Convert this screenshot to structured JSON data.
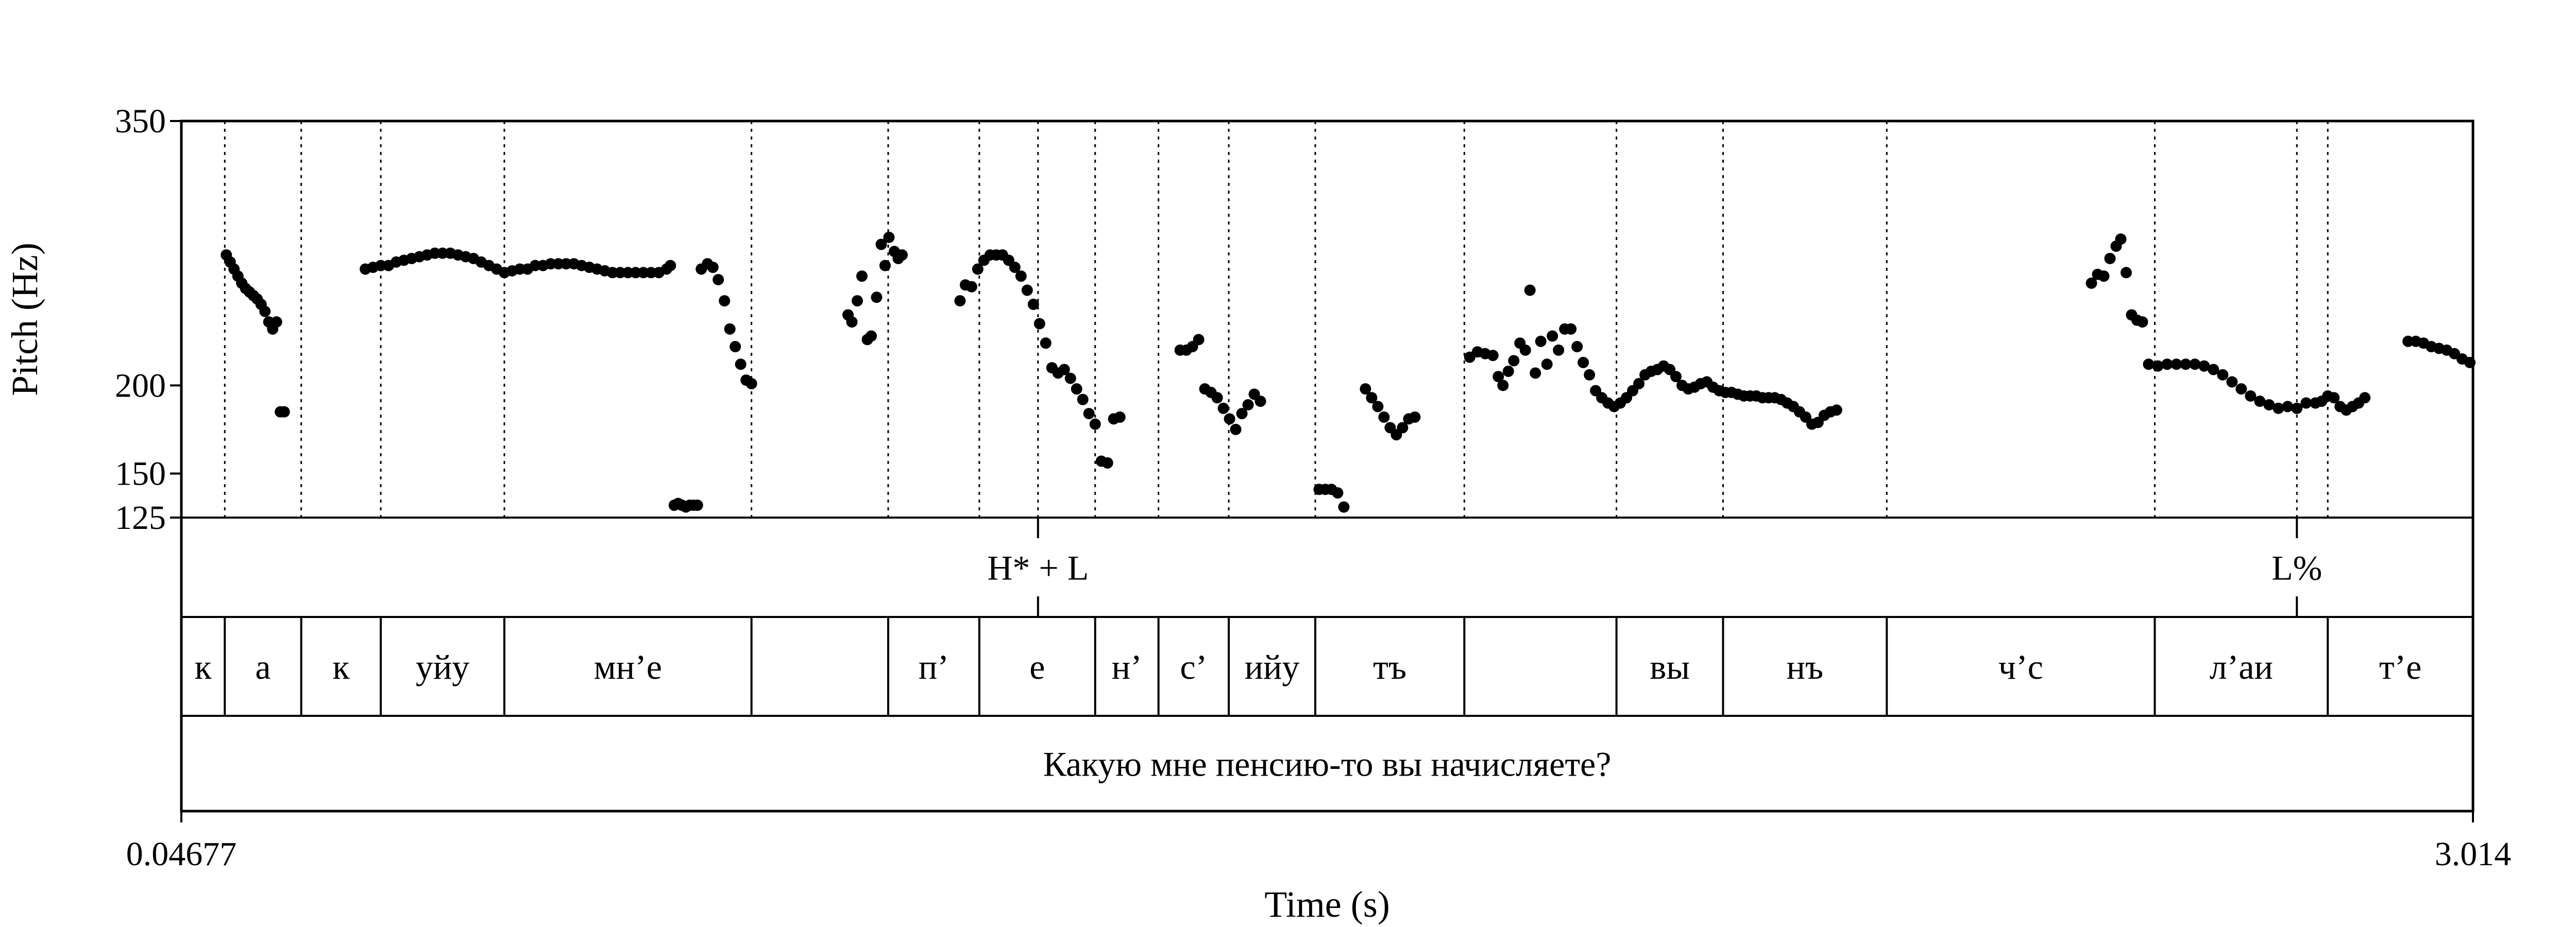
{
  "chart_data": {
    "type": "scatter",
    "ylabel": "Pitch (Hz)",
    "xlabel": "Time (s)",
    "xlim": [
      0.04677,
      3.014
    ],
    "ylim": [
      125,
      350
    ],
    "x_tick_labels": [
      "0.04677",
      "3.014"
    ],
    "y_ticks": [
      125,
      150,
      200,
      350
    ],
    "y_tick_labels": [
      "125",
      "150",
      "200",
      "350"
    ],
    "grid": false,
    "marker_color": "#000000",
    "series": [
      {
        "points": [
          [
            0.105,
            274
          ],
          [
            0.11,
            270
          ],
          [
            0.115,
            266
          ],
          [
            0.12,
            262
          ],
          [
            0.125,
            258
          ],
          [
            0.13,
            255
          ],
          [
            0.135,
            253
          ],
          [
            0.14,
            251
          ],
          [
            0.145,
            249
          ],
          [
            0.15,
            246
          ],
          [
            0.155,
            242
          ],
          [
            0.16,
            236
          ],
          [
            0.165,
            232
          ],
          [
            0.17,
            236
          ],
          [
            0.175,
            185
          ],
          [
            0.18,
            185
          ],
          [
            0.285,
            266
          ],
          [
            0.295,
            267
          ],
          [
            0.305,
            268
          ],
          [
            0.315,
            268
          ],
          [
            0.325,
            270
          ],
          [
            0.335,
            271
          ],
          [
            0.345,
            272
          ],
          [
            0.355,
            273
          ],
          [
            0.365,
            274
          ],
          [
            0.375,
            275
          ],
          [
            0.385,
            275
          ],
          [
            0.395,
            275
          ],
          [
            0.405,
            274
          ],
          [
            0.415,
            273
          ],
          [
            0.425,
            272
          ],
          [
            0.435,
            270
          ],
          [
            0.445,
            268
          ],
          [
            0.455,
            266
          ],
          [
            0.465,
            264
          ],
          [
            0.475,
            265
          ],
          [
            0.485,
            266
          ],
          [
            0.495,
            266
          ],
          [
            0.505,
            268
          ],
          [
            0.515,
            268
          ],
          [
            0.525,
            269
          ],
          [
            0.535,
            269
          ],
          [
            0.545,
            269
          ],
          [
            0.555,
            269
          ],
          [
            0.565,
            268
          ],
          [
            0.575,
            267
          ],
          [
            0.585,
            266
          ],
          [
            0.595,
            265
          ],
          [
            0.605,
            264
          ],
          [
            0.615,
            264
          ],
          [
            0.625,
            264
          ],
          [
            0.635,
            264
          ],
          [
            0.645,
            264
          ],
          [
            0.655,
            264
          ],
          [
            0.665,
            264
          ],
          [
            0.675,
            266
          ],
          [
            0.68,
            268
          ],
          [
            0.685,
            132
          ],
          [
            0.69,
            133
          ],
          [
            0.695,
            132
          ],
          [
            0.7,
            131
          ],
          [
            0.705,
            132
          ],
          [
            0.71,
            132
          ],
          [
            0.715,
            132
          ],
          [
            0.72,
            266
          ],
          [
            0.728,
            269
          ],
          [
            0.735,
            267
          ],
          [
            0.742,
            260
          ],
          [
            0.75,
            248
          ],
          [
            0.757,
            232
          ],
          [
            0.764,
            222
          ],
          [
            0.771,
            212
          ],
          [
            0.778,
            203
          ],
          [
            0.785,
            201
          ],
          [
            0.91,
            240
          ],
          [
            0.915,
            236
          ],
          [
            0.922,
            248
          ],
          [
            0.928,
            262
          ],
          [
            0.935,
            226
          ],
          [
            0.94,
            228
          ],
          [
            0.947,
            250
          ],
          [
            0.953,
            280
          ],
          [
            0.958,
            268
          ],
          [
            0.963,
            284
          ],
          [
            0.97,
            276
          ],
          [
            0.975,
            272
          ],
          [
            0.98,
            274
          ],
          [
            1.055,
            248
          ],
          [
            1.062,
            257
          ],
          [
            1.07,
            256
          ],
          [
            1.078,
            266
          ],
          [
            1.086,
            271
          ],
          [
            1.094,
            274
          ],
          [
            1.102,
            274
          ],
          [
            1.11,
            274
          ],
          [
            1.118,
            271
          ],
          [
            1.126,
            267
          ],
          [
            1.134,
            262
          ],
          [
            1.142,
            254
          ],
          [
            1.15,
            246
          ],
          [
            1.158,
            235
          ],
          [
            1.166,
            224
          ],
          [
            1.174,
            210
          ],
          [
            1.182,
            207
          ],
          [
            1.19,
            209
          ],
          [
            1.198,
            204
          ],
          [
            1.206,
            198
          ],
          [
            1.214,
            192
          ],
          [
            1.222,
            184
          ],
          [
            1.23,
            178
          ],
          [
            1.238,
            157
          ],
          [
            1.246,
            156
          ],
          [
            1.254,
            181
          ],
          [
            1.262,
            182
          ],
          [
            1.34,
            220
          ],
          [
            1.348,
            220
          ],
          [
            1.356,
            222
          ],
          [
            1.364,
            226
          ],
          [
            1.372,
            198
          ],
          [
            1.38,
            196
          ],
          [
            1.388,
            193
          ],
          [
            1.396,
            187
          ],
          [
            1.404,
            181
          ],
          [
            1.412,
            175
          ],
          [
            1.42,
            184
          ],
          [
            1.428,
            189
          ],
          [
            1.436,
            195
          ],
          [
            1.444,
            191
          ],
          [
            1.52,
            141
          ],
          [
            1.528,
            141
          ],
          [
            1.536,
            141
          ],
          [
            1.544,
            139
          ],
          [
            1.552,
            131
          ],
          [
            1.58,
            198
          ],
          [
            1.588,
            193
          ],
          [
            1.596,
            188
          ],
          [
            1.604,
            182
          ],
          [
            1.612,
            176
          ],
          [
            1.62,
            172
          ],
          [
            1.628,
            176
          ],
          [
            1.636,
            181
          ],
          [
            1.644,
            182
          ],
          [
            1.715,
            216
          ],
          [
            1.725,
            219
          ],
          [
            1.735,
            218
          ],
          [
            1.745,
            217
          ],
          [
            1.752,
            205
          ],
          [
            1.758,
            200
          ],
          [
            1.765,
            208
          ],
          [
            1.772,
            214
          ],
          [
            1.78,
            224
          ],
          [
            1.787,
            220
          ],
          [
            1.793,
            254
          ],
          [
            1.8,
            207
          ],
          [
            1.807,
            225
          ],
          [
            1.815,
            212
          ],
          [
            1.822,
            228
          ],
          [
            1.83,
            220
          ],
          [
            1.838,
            232
          ],
          [
            1.846,
            232
          ],
          [
            1.854,
            222
          ],
          [
            1.862,
            213
          ],
          [
            1.87,
            206
          ],
          [
            1.878,
            197
          ],
          [
            1.886,
            193
          ],
          [
            1.894,
            190
          ],
          [
            1.902,
            188
          ],
          [
            1.91,
            190
          ],
          [
            1.918,
            193
          ],
          [
            1.926,
            197
          ],
          [
            1.934,
            201
          ],
          [
            1.942,
            206
          ],
          [
            1.95,
            208
          ],
          [
            1.958,
            209
          ],
          [
            1.966,
            211
          ],
          [
            1.974,
            209
          ],
          [
            1.982,
            205
          ],
          [
            1.99,
            200
          ],
          [
            1.998,
            198
          ],
          [
            2.006,
            199
          ],
          [
            2.014,
            201
          ],
          [
            2.022,
            202
          ],
          [
            2.03,
            199
          ],
          [
            2.038,
            197
          ],
          [
            2.046,
            196
          ],
          [
            2.054,
            196
          ],
          [
            2.062,
            195
          ],
          [
            2.07,
            194
          ],
          [
            2.078,
            194
          ],
          [
            2.086,
            194
          ],
          [
            2.094,
            193
          ],
          [
            2.102,
            193
          ],
          [
            2.11,
            193
          ],
          [
            2.118,
            192
          ],
          [
            2.126,
            190
          ],
          [
            2.134,
            188
          ],
          [
            2.142,
            185
          ],
          [
            2.15,
            182
          ],
          [
            2.158,
            178
          ],
          [
            2.166,
            179
          ],
          [
            2.174,
            183
          ],
          [
            2.182,
            185
          ],
          [
            2.19,
            186
          ],
          [
            2.52,
            258
          ],
          [
            2.528,
            263
          ],
          [
            2.536,
            262
          ],
          [
            2.544,
            272
          ],
          [
            2.552,
            279
          ],
          [
            2.558,
            283
          ],
          [
            2.565,
            264
          ],
          [
            2.572,
            240
          ],
          [
            2.579,
            237
          ],
          [
            2.586,
            236
          ],
          [
            2.594,
            212
          ],
          [
            2.606,
            211
          ],
          [
            2.618,
            212
          ],
          [
            2.63,
            212
          ],
          [
            2.642,
            212
          ],
          [
            2.654,
            212
          ],
          [
            2.666,
            211
          ],
          [
            2.678,
            209
          ],
          [
            2.69,
            206
          ],
          [
            2.702,
            202
          ],
          [
            2.714,
            198
          ],
          [
            2.726,
            194
          ],
          [
            2.738,
            191
          ],
          [
            2.75,
            189
          ],
          [
            2.762,
            187
          ],
          [
            2.774,
            188
          ],
          [
            2.786,
            187
          ],
          [
            2.798,
            190
          ],
          [
            2.81,
            190
          ],
          [
            2.818,
            191
          ],
          [
            2.826,
            194
          ],
          [
            2.834,
            193
          ],
          [
            2.842,
            188
          ],
          [
            2.85,
            186
          ],
          [
            2.858,
            188
          ],
          [
            2.866,
            190
          ],
          [
            2.874,
            193
          ],
          [
            2.93,
            225
          ],
          [
            2.94,
            225
          ],
          [
            2.95,
            224
          ],
          [
            2.96,
            222
          ],
          [
            2.97,
            221
          ],
          [
            2.98,
            220
          ],
          [
            2.99,
            218
          ],
          [
            3.0,
            215
          ],
          [
            3.01,
            213
          ]
        ]
      }
    ],
    "tiers": [
      {
        "name": "tones",
        "points": [
          {
            "time": 1.156,
            "label": "H* + L"
          },
          {
            "time": 2.786,
            "label": "L%"
          }
        ]
      },
      {
        "name": "segments",
        "intervals": [
          {
            "start": 0.04677,
            "end": 0.103,
            "label": "к"
          },
          {
            "start": 0.103,
            "end": 0.202,
            "label": "а"
          },
          {
            "start": 0.202,
            "end": 0.305,
            "label": "к"
          },
          {
            "start": 0.305,
            "end": 0.465,
            "label": "уйу"
          },
          {
            "start": 0.465,
            "end": 0.785,
            "label": "мн’е"
          },
          {
            "start": 0.785,
            "end": 0.962,
            "label": ""
          },
          {
            "start": 0.962,
            "end": 1.08,
            "label": "п’"
          },
          {
            "start": 1.08,
            "end": 1.23,
            "label": "е"
          },
          {
            "start": 1.23,
            "end": 1.312,
            "label": "н’"
          },
          {
            "start": 1.312,
            "end": 1.403,
            "label": "с’"
          },
          {
            "start": 1.403,
            "end": 1.515,
            "label": "ийу"
          },
          {
            "start": 1.515,
            "end": 1.708,
            "label": "тъ"
          },
          {
            "start": 1.708,
            "end": 1.905,
            "label": ""
          },
          {
            "start": 1.905,
            "end": 2.043,
            "label": "вы"
          },
          {
            "start": 2.043,
            "end": 2.255,
            "label": "нъ"
          },
          {
            "start": 2.255,
            "end": 2.602,
            "label": "ч’с"
          },
          {
            "start": 2.602,
            "end": 2.826,
            "label": "л’аи"
          },
          {
            "start": 2.826,
            "end": 3.014,
            "label": "т’е"
          }
        ]
      },
      {
        "name": "sentence",
        "intervals": [
          {
            "start": 0.04677,
            "end": 3.014,
            "label": "Какую мне пенсию-то вы начисляете?"
          }
        ]
      }
    ]
  }
}
